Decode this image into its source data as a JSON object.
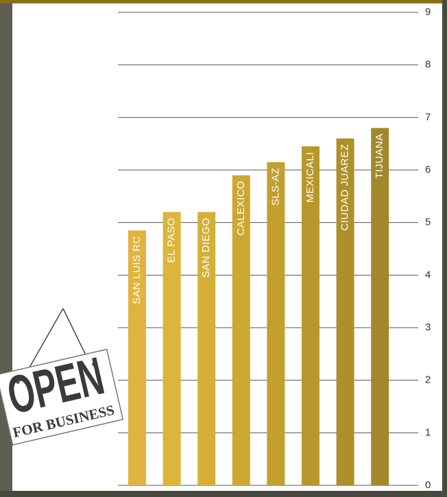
{
  "chart_data": {
    "type": "bar",
    "categories": [
      "SAN LUIS RC",
      "EL PASO",
      "SAN DIEGO",
      "CALEXICO",
      "SLS-AZ",
      "MEXICALI",
      "CIUDAD JUAREZ",
      "TIJUANA"
    ],
    "values": [
      4.85,
      5.2,
      5.2,
      5.9,
      6.15,
      6.45,
      6.6,
      6.8
    ],
    "colors": [
      "#e1b33f",
      "#dcb53a",
      "#d5b037",
      "#cca832",
      "#c39f30",
      "#b8982d",
      "#ad902a",
      "#a2882a"
    ],
    "ylim": [
      0,
      9
    ],
    "yticks": [
      0,
      1,
      2,
      3,
      4,
      5,
      6,
      7,
      8,
      9
    ],
    "grid": true,
    "y_axis_side": "right"
  },
  "sign": {
    "line1": "OPEN",
    "line2": "FOR BUSINESS"
  }
}
